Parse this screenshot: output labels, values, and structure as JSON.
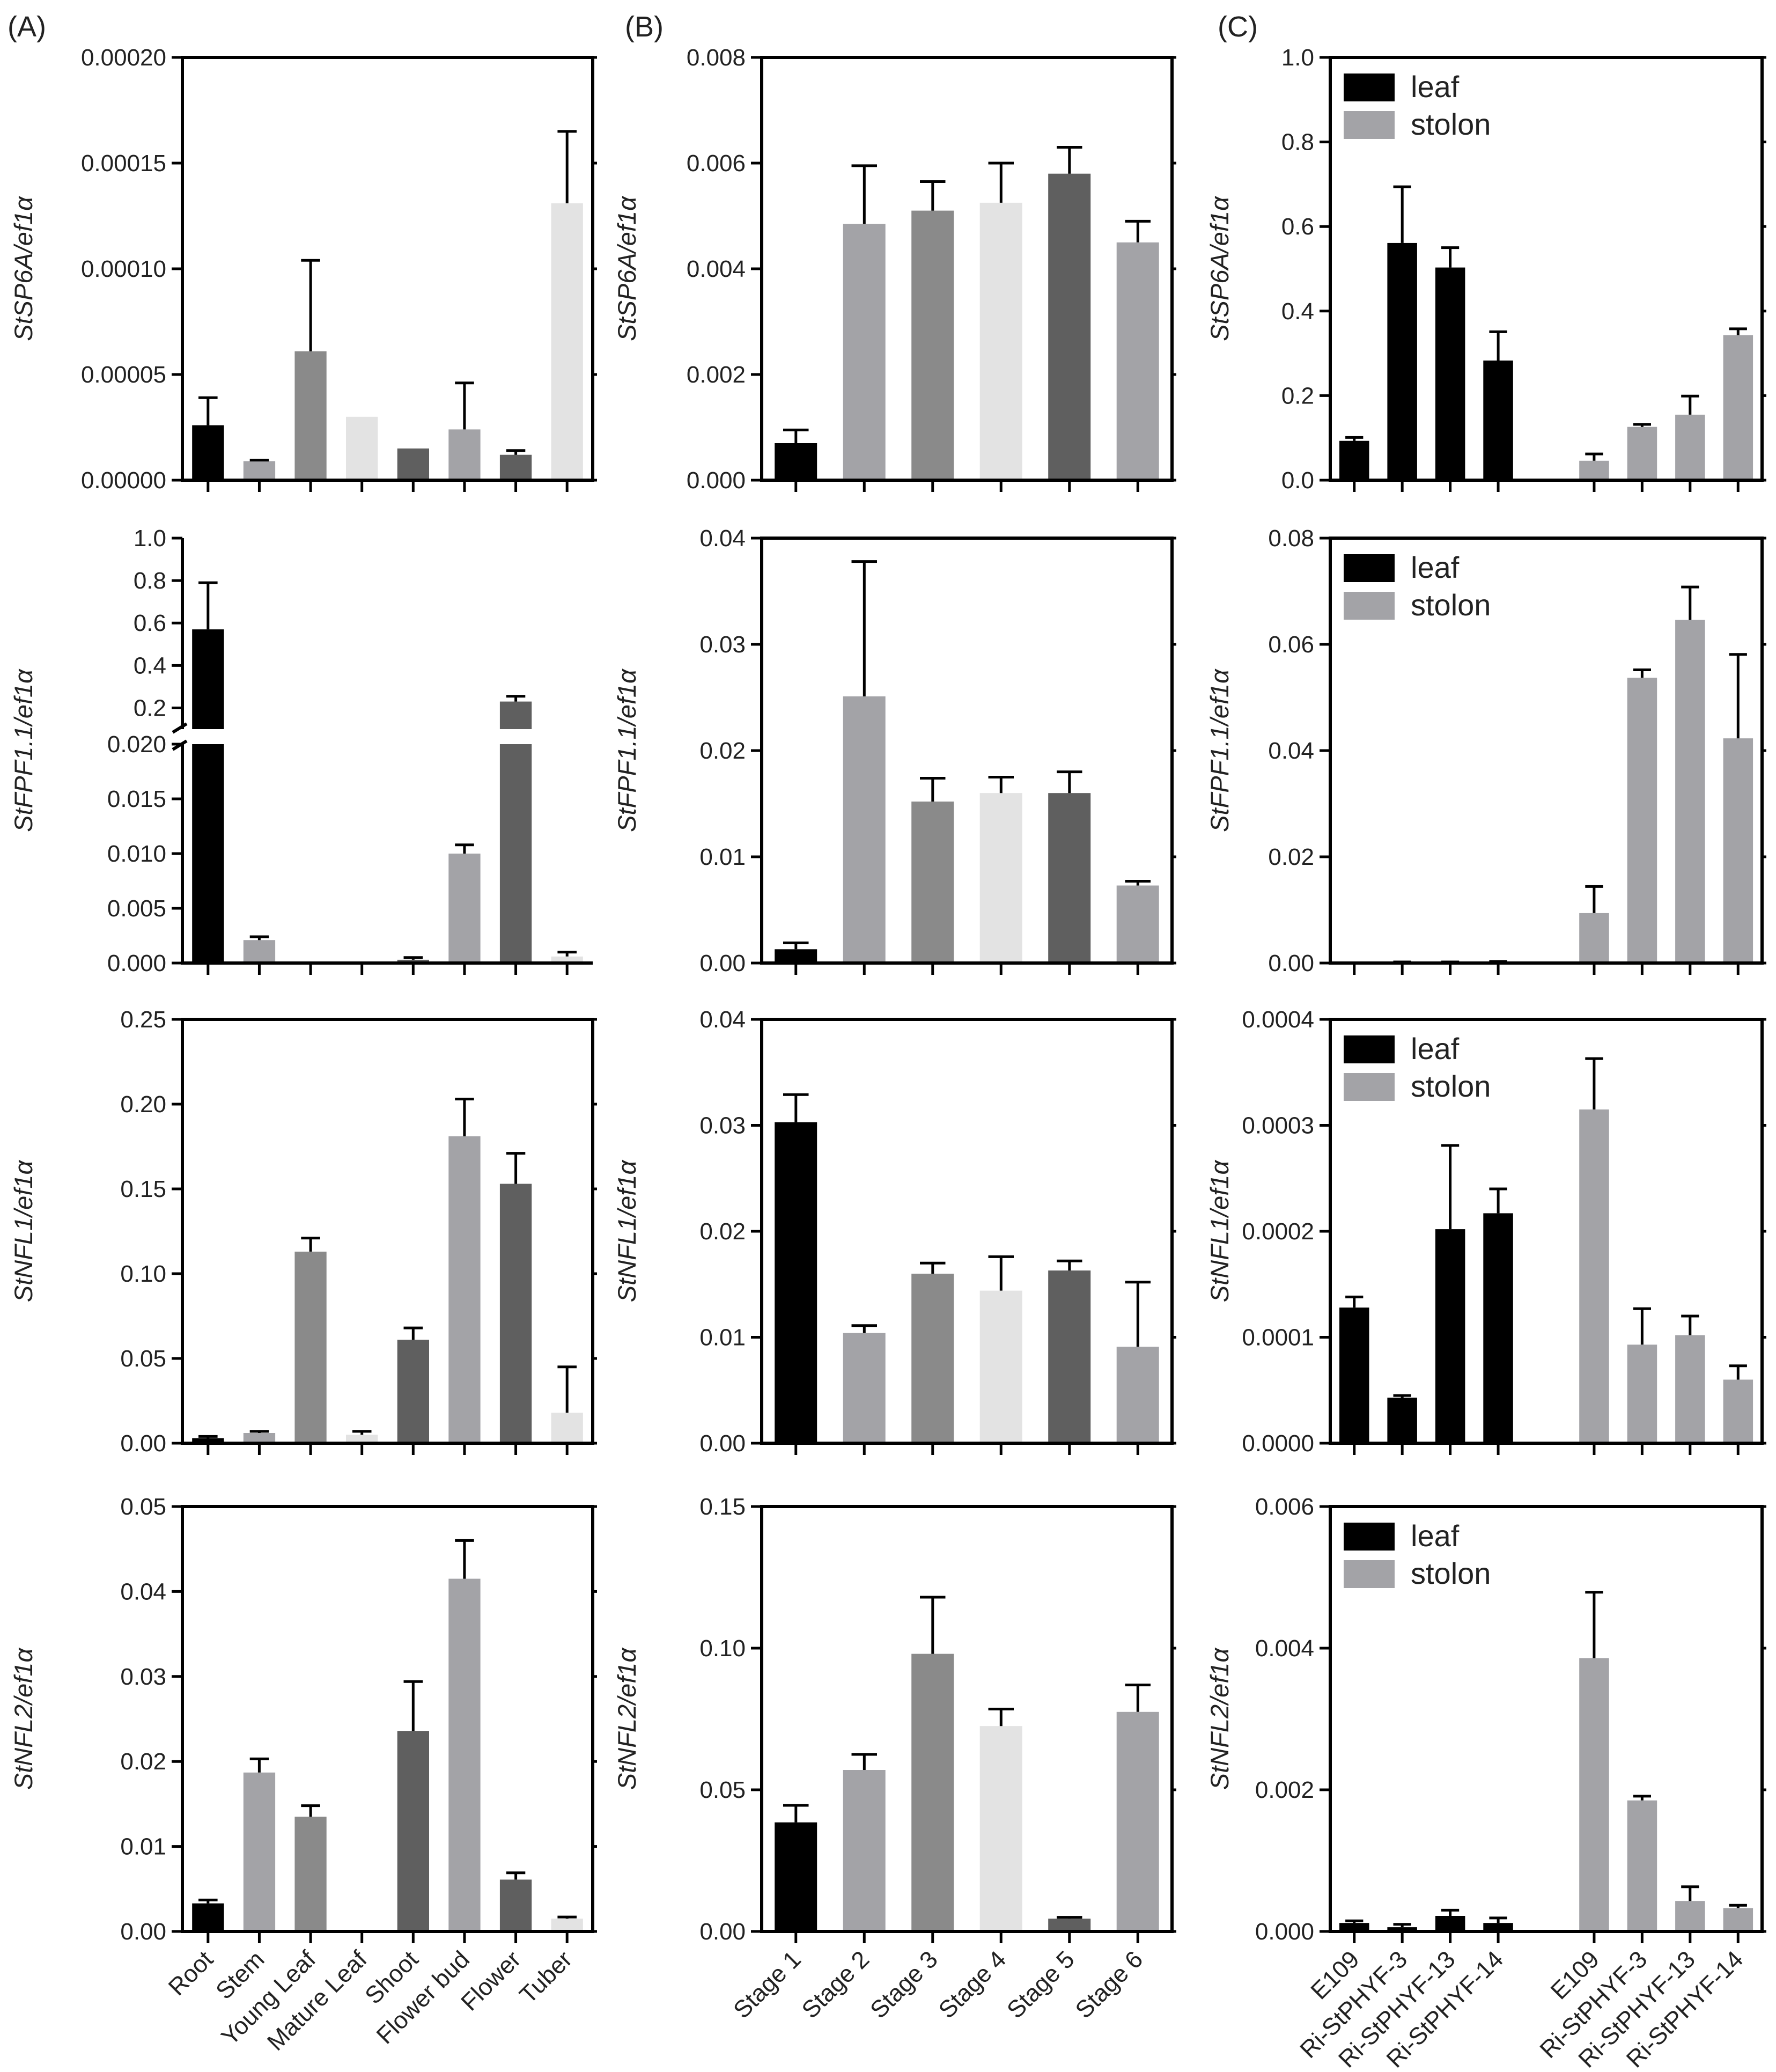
{
  "figure": {
    "panel_labels": [
      "(A)",
      "(B)",
      "(C)"
    ]
  },
  "colors": {
    "black": "#000000",
    "gray_light": "#a3a3a7",
    "gray_mid": "#8a8a8a",
    "gray_pale": "#e3e3e3",
    "gray_dark": "#5f5f5f",
    "gray_stolon": "#a3a3a7"
  },
  "chart_data": [
    {
      "id": "A-sp6a",
      "type": "bar",
      "title": "",
      "xlabel": "",
      "ylabel": "StSP6A/ef1α",
      "categories": [
        "Root",
        "Stem",
        "Young Leaf",
        "Mature Leaf",
        "Shoot",
        "Flower bud",
        "Flower",
        "Tuber"
      ],
      "values": [
        2.6e-05,
        9e-06,
        6.1e-05,
        3e-05,
        1.5e-05,
        2.4e-05,
        1.2e-05,
        0.000131
      ],
      "errors": [
        1.3e-05,
        5e-07,
        4.3e-05,
        0,
        0,
        2.2e-05,
        2e-06,
        3.4e-05
      ],
      "colors": [
        "black",
        "gray_light",
        "gray_mid",
        "gray_pale",
        "gray_dark",
        "gray_light",
        "gray_dark",
        "gray_pale"
      ],
      "ylim": [
        0,
        0.0002
      ],
      "ticks": [
        "0.00000",
        "0.00005",
        "0.00010",
        "0.00015",
        "0.00020"
      ],
      "show_categories": false
    },
    {
      "id": "A-fpf1",
      "type": "bar",
      "title": "",
      "xlabel": "",
      "ylabel": "StFPF1.1/ef1α",
      "categories": [
        "Root",
        "Stem",
        "Young Leaf",
        "Mature Leaf",
        "Shoot",
        "Flower bud",
        "Flower",
        "Tuber"
      ],
      "values": [
        0.57,
        0.0021,
        0.0,
        0.0001,
        0.0003,
        0.01,
        0.23,
        0.0006
      ],
      "errors": [
        0.22,
        0.0003,
        0,
        0,
        0.0002,
        0.0008,
        0.025,
        0.0004
      ],
      "colors": [
        "black",
        "gray_light",
        "gray_mid",
        "gray_pale",
        "gray_dark",
        "gray_light",
        "gray_dark",
        "gray_pale"
      ],
      "broken_axis": {
        "lower": [
          0,
          0.02
        ],
        "upper": [
          0.1,
          1.0
        ]
      },
      "ticks_lower": [
        "0.000",
        "0.005",
        "0.010",
        "0.015",
        "0.020"
      ],
      "ticks_upper": [
        "0.2",
        "0.4",
        "0.6",
        "0.8",
        "1.0"
      ],
      "show_categories": false
    },
    {
      "id": "A-nfl1",
      "type": "bar",
      "title": "",
      "xlabel": "",
      "ylabel": "StNFL1/ef1α",
      "categories": [
        "Root",
        "Stem",
        "Young Leaf",
        "Mature Leaf",
        "Shoot",
        "Flower bud",
        "Flower",
        "Tuber"
      ],
      "values": [
        0.003,
        0.006,
        0.113,
        0.005,
        0.061,
        0.181,
        0.153,
        0.018
      ],
      "errors": [
        0.001,
        0.001,
        0.008,
        0.002,
        0.007,
        0.022,
        0.018,
        0.027
      ],
      "colors": [
        "black",
        "gray_light",
        "gray_mid",
        "gray_pale",
        "gray_dark",
        "gray_light",
        "gray_dark",
        "gray_pale"
      ],
      "ylim": [
        0,
        0.25
      ],
      "ticks": [
        "0.00",
        "0.05",
        "0.10",
        "0.15",
        "0.20",
        "0.25"
      ],
      "show_categories": false
    },
    {
      "id": "A-nfl2",
      "type": "bar",
      "title": "",
      "xlabel": "",
      "ylabel": "StNFL2/ef1α",
      "categories": [
        "Root",
        "Stem",
        "Young Leaf",
        "Mature Leaf",
        "Shoot",
        "Flower bud",
        "Flower",
        "Tuber"
      ],
      "values": [
        0.0033,
        0.0187,
        0.0135,
        0.0,
        0.0236,
        0.0415,
        0.0061,
        0.0015
      ],
      "errors": [
        0.0004,
        0.0016,
        0.0013,
        0,
        0.0058,
        0.0045,
        0.0008,
        0.0002
      ],
      "colors": [
        "black",
        "gray_light",
        "gray_mid",
        "gray_pale",
        "gray_dark",
        "gray_light",
        "gray_dark",
        "gray_pale"
      ],
      "ylim": [
        0,
        0.05
      ],
      "ticks": [
        "0.00",
        "0.01",
        "0.02",
        "0.03",
        "0.04",
        "0.05"
      ],
      "show_categories": true
    },
    {
      "id": "B-sp6a",
      "type": "bar",
      "title": "",
      "xlabel": "",
      "ylabel": "StSP6A/ef1α",
      "categories": [
        "Stage 1",
        "Stage 2",
        "Stage 3",
        "Stage 4",
        "Stage 5",
        "Stage 6"
      ],
      "values": [
        0.0007,
        0.00485,
        0.0051,
        0.00525,
        0.0058,
        0.0045
      ],
      "errors": [
        0.00025,
        0.0011,
        0.00055,
        0.00075,
        0.0005,
        0.0004
      ],
      "colors": [
        "black",
        "gray_light",
        "gray_mid",
        "gray_pale",
        "gray_dark",
        "gray_light"
      ],
      "ylim": [
        0,
        0.008
      ],
      "ticks": [
        "0.000",
        "0.002",
        "0.004",
        "0.006",
        "0.008"
      ],
      "show_categories": false
    },
    {
      "id": "B-fpf1",
      "type": "bar",
      "title": "",
      "xlabel": "",
      "ylabel": "StFPF1.1/ef1α",
      "categories": [
        "Stage 1",
        "Stage 2",
        "Stage 3",
        "Stage 4",
        "Stage 5",
        "Stage 6"
      ],
      "values": [
        0.0013,
        0.0251,
        0.0152,
        0.016,
        0.016,
        0.0073
      ],
      "errors": [
        0.0006,
        0.0127,
        0.0022,
        0.0015,
        0.002,
        0.0004
      ],
      "colors": [
        "black",
        "gray_light",
        "gray_mid",
        "gray_pale",
        "gray_dark",
        "gray_light"
      ],
      "ylim": [
        0,
        0.04
      ],
      "ticks": [
        "0.00",
        "0.01",
        "0.02",
        "0.03",
        "0.04"
      ],
      "show_categories": false
    },
    {
      "id": "B-nfl1",
      "type": "bar",
      "title": "",
      "xlabel": "",
      "ylabel": "StNFL1/ef1α",
      "categories": [
        "Stage 1",
        "Stage 2",
        "Stage 3",
        "Stage 4",
        "Stage 5",
        "Stage 6"
      ],
      "values": [
        0.0303,
        0.0104,
        0.016,
        0.0144,
        0.0163,
        0.0091
      ],
      "errors": [
        0.0026,
        0.0007,
        0.001,
        0.0032,
        0.0009,
        0.0061
      ],
      "colors": [
        "black",
        "gray_light",
        "gray_mid",
        "gray_pale",
        "gray_dark",
        "gray_light"
      ],
      "ylim": [
        0,
        0.04
      ],
      "ticks": [
        "0.00",
        "0.01",
        "0.02",
        "0.03",
        "0.04"
      ],
      "show_categories": false
    },
    {
      "id": "B-nfl2",
      "type": "bar",
      "title": "",
      "xlabel": "",
      "ylabel": "StNFL2/ef1α",
      "categories": [
        "Stage 1",
        "Stage 2",
        "Stage 3",
        "Stage 4",
        "Stage 5",
        "Stage 6"
      ],
      "values": [
        0.0385,
        0.057,
        0.098,
        0.0725,
        0.0045,
        0.0775
      ],
      "errors": [
        0.006,
        0.0055,
        0.02,
        0.006,
        0.0005,
        0.0095
      ],
      "colors": [
        "black",
        "gray_light",
        "gray_mid",
        "gray_pale",
        "gray_dark",
        "gray_light"
      ],
      "ylim": [
        0,
        0.15
      ],
      "ticks": [
        "0.00",
        "0.05",
        "0.10",
        "0.15"
      ],
      "show_categories": true
    },
    {
      "id": "C-sp6a",
      "type": "bar",
      "title": "",
      "xlabel": "",
      "ylabel": "StSP6A/ef1α",
      "categories": [
        "E109",
        "Ri-StPHYF-3",
        "Ri-StPHYF-13",
        "Ri-StPHYF-14",
        "E109",
        "Ri-StPHYF-3",
        "Ri-StPHYF-13",
        "Ri-StPHYF-14"
      ],
      "values": [
        0.093,
        0.561,
        0.503,
        0.283,
        0.046,
        0.126,
        0.155,
        0.343
      ],
      "errors": [
        0.008,
        0.133,
        0.047,
        0.068,
        0.016,
        0.006,
        0.044,
        0.015
      ],
      "colors": [
        "black",
        "black",
        "black",
        "black",
        "gray_stolon",
        "gray_stolon",
        "gray_stolon",
        "gray_stolon"
      ],
      "ylim": [
        0,
        1.0
      ],
      "ticks": [
        "0.0",
        "0.2",
        "0.4",
        "0.6",
        "0.8",
        "1.0"
      ],
      "legend": [
        {
          "label": "leaf",
          "color": "black"
        },
        {
          "label": "stolon",
          "color": "gray_stolon"
        }
      ],
      "show_categories": false
    },
    {
      "id": "C-fpf1",
      "type": "bar",
      "title": "",
      "xlabel": "",
      "ylabel": "StFPF1.1/ef1α",
      "categories": [
        "E109",
        "Ri-StPHYF-3",
        "Ri-StPHYF-13",
        "Ri-StPHYF-14",
        "E109",
        "Ri-StPHYF-3",
        "Ri-StPHYF-13",
        "Ri-StPHYF-14"
      ],
      "values": [
        0.0,
        0.0001,
        0.0001,
        0.0002,
        0.0094,
        0.0537,
        0.0646,
        0.0423
      ],
      "errors": [
        0,
        0.0001,
        0.0001,
        0.0001,
        0.005,
        0.0015,
        0.0062,
        0.0158
      ],
      "colors": [
        "black",
        "black",
        "black",
        "black",
        "gray_stolon",
        "gray_stolon",
        "gray_stolon",
        "gray_stolon"
      ],
      "ylim": [
        0,
        0.08
      ],
      "ticks": [
        "0.00",
        "0.02",
        "0.04",
        "0.06",
        "0.08"
      ],
      "legend": [
        {
          "label": "leaf",
          "color": "black"
        },
        {
          "label": "stolon",
          "color": "gray_stolon"
        }
      ],
      "show_categories": false
    },
    {
      "id": "C-nfl1",
      "type": "bar",
      "title": "",
      "xlabel": "",
      "ylabel": "StNFL1/ef1α",
      "categories": [
        "E109",
        "Ri-StPHYF-3",
        "Ri-StPHYF-13",
        "Ri-StPHYF-14",
        "E109",
        "Ri-StPHYF-3",
        "Ri-StPHYF-13",
        "Ri-StPHYF-14"
      ],
      "values": [
        0.000128,
        4.3e-05,
        0.000202,
        0.000217,
        0.000315,
        9.3e-05,
        0.000102,
        6e-05
      ],
      "errors": [
        1e-05,
        2e-06,
        7.9e-05,
        2.3e-05,
        4.8e-05,
        3.4e-05,
        1.8e-05,
        1.3e-05
      ],
      "colors": [
        "black",
        "black",
        "black",
        "black",
        "gray_stolon",
        "gray_stolon",
        "gray_stolon",
        "gray_stolon"
      ],
      "ylim": [
        0,
        0.0004
      ],
      "ticks": [
        "0.0000",
        "0.0001",
        "0.0002",
        "0.0003",
        "0.0004"
      ],
      "legend": [
        {
          "label": "leaf",
          "color": "black"
        },
        {
          "label": "stolon",
          "color": "gray_stolon"
        }
      ],
      "show_categories": false
    },
    {
      "id": "C-nfl2",
      "type": "bar",
      "title": "",
      "xlabel": "",
      "ylabel": "StNFL2/ef1α",
      "categories": [
        "E109",
        "Ri-StPHYF-3",
        "Ri-StPHYF-13",
        "Ri-StPHYF-14",
        "E109",
        "Ri-StPHYF-3",
        "Ri-StPHYF-13",
        "Ri-StPHYF-14"
      ],
      "values": [
        0.00012,
        6e-05,
        0.00022,
        0.00012,
        0.00386,
        0.00185,
        0.00043,
        0.00033
      ],
      "errors": [
        3e-05,
        4e-05,
        8e-05,
        7e-05,
        0.00093,
        6e-05,
        0.0002,
        4e-05
      ],
      "colors": [
        "black",
        "black",
        "black",
        "black",
        "gray_stolon",
        "gray_stolon",
        "gray_stolon",
        "gray_stolon"
      ],
      "ylim": [
        0,
        0.006
      ],
      "ticks": [
        "0.000",
        "0.002",
        "0.004",
        "0.006"
      ],
      "legend": [
        {
          "label": "leaf",
          "color": "black"
        },
        {
          "label": "stolon",
          "color": "gray_stolon"
        }
      ],
      "show_categories": true
    }
  ]
}
